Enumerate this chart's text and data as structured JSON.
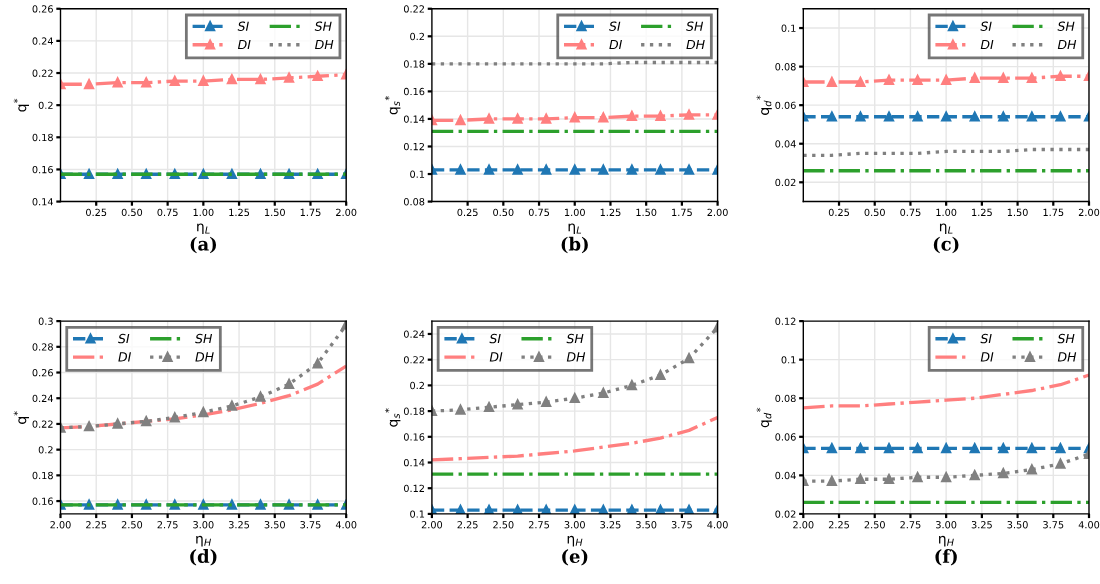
{
  "chart_data": [
    {
      "type": "line",
      "title": "(a)",
      "xlabel": "η$_{L}$",
      "ylabel": "q$^{*}$",
      "x": [
        0,
        0.2,
        0.4,
        0.6,
        0.8,
        1.0,
        1.2,
        1.4,
        1.6,
        1.8,
        2.0
      ],
      "xlim": [
        0,
        2
      ],
      "xticks": [
        {
          "value": 0.25,
          "label": "0.25"
        },
        {
          "value": 0.5,
          "label": "0.50"
        },
        {
          "value": 0.75,
          "label": "0.75"
        },
        {
          "value": 1.0,
          "label": "1.00"
        },
        {
          "value": 1.25,
          "label": "1.25"
        },
        {
          "value": 1.5,
          "label": "1.50"
        },
        {
          "value": 1.75,
          "label": "1.75"
        },
        {
          "value": 2.0,
          "label": "2.00"
        }
      ],
      "ylim": [
        0.14,
        0.26
      ],
      "yticks": [
        0.14,
        0.16,
        0.18,
        0.2,
        0.22,
        0.24,
        0.26
      ],
      "grid": true,
      "legend": "top right",
      "series": [
        {
          "name": "SI",
          "color": "#1f77b4",
          "line_style": "dashed",
          "marker": "triangle",
          "values": [
            0.157,
            0.157,
            0.157,
            0.157,
            0.157,
            0.157,
            0.157,
            0.157,
            0.157,
            0.157,
            0.157
          ]
        },
        {
          "name": "DI",
          "color": "#ff7f7f",
          "line_style": "dashdot",
          "marker": "triangle",
          "values": [
            0.213,
            0.213,
            0.214,
            0.214,
            0.215,
            0.215,
            0.216,
            0.216,
            0.217,
            0.218,
            0.219
          ]
        },
        {
          "name": "SH",
          "color": "#2ca02c",
          "line_style": "dashdot",
          "marker": "none",
          "values": [
            0.157,
            0.157,
            0.157,
            0.157,
            0.157,
            0.157,
            0.157,
            0.157,
            0.157,
            0.157,
            0.157
          ]
        },
        {
          "name": "DH",
          "color": "#808080",
          "line_style": "dotted",
          "marker": "none",
          "values": [
            null,
            null,
            null,
            null,
            null,
            null,
            null,
            null,
            null,
            null,
            null
          ]
        }
      ]
    },
    {
      "type": "line",
      "title": "(b)",
      "xlabel": "η$_{L}$",
      "ylabel": "q$_{s}$$^{*}$",
      "x": [
        0,
        0.2,
        0.4,
        0.6,
        0.8,
        1.0,
        1.2,
        1.4,
        1.6,
        1.8,
        2.0
      ],
      "xlim": [
        0,
        2
      ],
      "xticks": [
        {
          "value": 0.25,
          "label": "0.25"
        },
        {
          "value": 0.5,
          "label": "0.50"
        },
        {
          "value": 0.75,
          "label": "0.75"
        },
        {
          "value": 1.0,
          "label": "1.00"
        },
        {
          "value": 1.25,
          "label": "1.25"
        },
        {
          "value": 1.5,
          "label": "1.50"
        },
        {
          "value": 1.75,
          "label": "1.75"
        },
        {
          "value": 2.0,
          "label": "2.00"
        }
      ],
      "ylim": [
        0.08,
        0.22
      ],
      "yticks": [
        0.08,
        0.1,
        0.12,
        0.14,
        0.16,
        0.18,
        0.2,
        0.22
      ],
      "grid": true,
      "legend": "top right",
      "series": [
        {
          "name": "SI",
          "color": "#1f77b4",
          "line_style": "dashed",
          "marker": "triangle",
          "values": [
            0.103,
            0.103,
            0.103,
            0.103,
            0.103,
            0.103,
            0.103,
            0.103,
            0.103,
            0.103,
            0.103
          ]
        },
        {
          "name": "DI",
          "color": "#ff7f7f",
          "line_style": "dashdot",
          "marker": "triangle",
          "values": [
            0.139,
            0.139,
            0.14,
            0.14,
            0.14,
            0.141,
            0.141,
            0.142,
            0.142,
            0.143,
            0.143
          ]
        },
        {
          "name": "SH",
          "color": "#2ca02c",
          "line_style": "dashdot",
          "marker": "none",
          "values": [
            0.131,
            0.131,
            0.131,
            0.131,
            0.131,
            0.131,
            0.131,
            0.131,
            0.131,
            0.131,
            0.131
          ]
        },
        {
          "name": "DH",
          "color": "#808080",
          "line_style": "dotted",
          "marker": "none",
          "values": [
            0.18,
            0.18,
            0.18,
            0.18,
            0.18,
            0.18,
            0.18,
            0.181,
            0.181,
            0.181,
            0.181
          ]
        }
      ]
    },
    {
      "type": "line",
      "title": "(c)",
      "xlabel": "η$_{L}$",
      "ylabel": "q$_{d}$$^{*}$",
      "x": [
        0,
        0.2,
        0.4,
        0.6,
        0.8,
        1.0,
        1.2,
        1.4,
        1.6,
        1.8,
        2.0
      ],
      "xlim": [
        0,
        2
      ],
      "xticks": [
        {
          "value": 0.25,
          "label": "0.25"
        },
        {
          "value": 0.5,
          "label": "0.50"
        },
        {
          "value": 0.75,
          "label": "0.75"
        },
        {
          "value": 1.0,
          "label": "1.00"
        },
        {
          "value": 1.25,
          "label": "1.25"
        },
        {
          "value": 1.5,
          "label": "1.50"
        },
        {
          "value": 1.75,
          "label": "1.75"
        },
        {
          "value": 2.0,
          "label": "2.00"
        }
      ],
      "ylim": [
        0.01,
        0.11
      ],
      "yticks": [
        0.02,
        0.04,
        0.06,
        0.08,
        0.1
      ],
      "grid": true,
      "legend": "top right",
      "series": [
        {
          "name": "SI",
          "color": "#1f77b4",
          "line_style": "dashed",
          "marker": "triangle",
          "values": [
            0.054,
            0.054,
            0.054,
            0.054,
            0.054,
            0.054,
            0.054,
            0.054,
            0.054,
            0.054,
            0.054
          ]
        },
        {
          "name": "DI",
          "color": "#ff7f7f",
          "line_style": "dashdot",
          "marker": "triangle",
          "values": [
            0.072,
            0.072,
            0.072,
            0.073,
            0.073,
            0.073,
            0.074,
            0.074,
            0.074,
            0.075,
            0.075
          ]
        },
        {
          "name": "SH",
          "color": "#2ca02c",
          "line_style": "dashdot",
          "marker": "none",
          "values": [
            0.026,
            0.026,
            0.026,
            0.026,
            0.026,
            0.026,
            0.026,
            0.026,
            0.026,
            0.026,
            0.026
          ]
        },
        {
          "name": "DH",
          "color": "#808080",
          "line_style": "dotted",
          "marker": "none",
          "values": [
            0.034,
            0.034,
            0.035,
            0.035,
            0.035,
            0.036,
            0.036,
            0.036,
            0.037,
            0.037,
            0.037
          ]
        }
      ]
    },
    {
      "type": "line",
      "title": "(d)",
      "xlabel": "η$_{H}$",
      "ylabel": "q$^{*}$",
      "x": [
        2.0,
        2.2,
        2.4,
        2.6,
        2.8,
        3.0,
        3.2,
        3.4,
        3.6,
        3.8,
        4.0
      ],
      "xlim": [
        2,
        4
      ],
      "xticks": [
        {
          "value": 2.0,
          "label": "2.00"
        },
        {
          "value": 2.25,
          "label": "2.25"
        },
        {
          "value": 2.5,
          "label": "2.50"
        },
        {
          "value": 2.75,
          "label": "2.75"
        },
        {
          "value": 3.0,
          "label": "3.00"
        },
        {
          "value": 3.25,
          "label": "3.25"
        },
        {
          "value": 3.5,
          "label": "3.50"
        },
        {
          "value": 3.75,
          "label": "3.75"
        },
        {
          "value": 4.0,
          "label": "4.00"
        }
      ],
      "ylim": [
        0.15,
        0.3
      ],
      "yticks": [
        0.16,
        0.18,
        0.2,
        0.22,
        0.24,
        0.26,
        0.28,
        0.3
      ],
      "grid": true,
      "legend": "top left",
      "series": [
        {
          "name": "SI",
          "color": "#1f77b4",
          "line_style": "dashed",
          "marker": "triangle",
          "values": [
            0.157,
            0.157,
            0.157,
            0.157,
            0.157,
            0.157,
            0.157,
            0.157,
            0.157,
            0.157,
            0.157
          ]
        },
        {
          "name": "DI",
          "color": "#ff7f7f",
          "line_style": "dashdot",
          "marker": "none",
          "values": [
            0.217,
            0.218,
            0.22,
            0.222,
            0.224,
            0.227,
            0.231,
            0.236,
            0.242,
            0.251,
            0.265
          ]
        },
        {
          "name": "SH",
          "color": "#2ca02c",
          "line_style": "dashdot",
          "marker": "none",
          "values": [
            0.157,
            0.157,
            0.157,
            0.157,
            0.157,
            0.157,
            0.157,
            0.157,
            0.157,
            0.157,
            0.157
          ]
        },
        {
          "name": "DH",
          "color": "#808080",
          "line_style": "dotted",
          "marker": "triangle",
          "values": [
            0.217,
            0.218,
            0.22,
            0.222,
            0.225,
            0.229,
            0.234,
            0.241,
            0.251,
            0.267,
            0.297
          ]
        }
      ]
    },
    {
      "type": "line",
      "title": "(e)",
      "xlabel": "η$_{H}$",
      "ylabel": "q$_{s}$$^{*}$",
      "x": [
        2.0,
        2.2,
        2.4,
        2.6,
        2.8,
        3.0,
        3.2,
        3.4,
        3.6,
        3.8,
        4.0
      ],
      "xlim": [
        2,
        4
      ],
      "xticks": [
        {
          "value": 2.0,
          "label": "2.00"
        },
        {
          "value": 2.25,
          "label": "2.25"
        },
        {
          "value": 2.5,
          "label": "2.50"
        },
        {
          "value": 2.75,
          "label": "2.75"
        },
        {
          "value": 3.0,
          "label": "3.00"
        },
        {
          "value": 3.25,
          "label": "3.25"
        },
        {
          "value": 3.5,
          "label": "3.50"
        },
        {
          "value": 3.75,
          "label": "3.75"
        },
        {
          "value": 4.0,
          "label": "4.00"
        }
      ],
      "ylim": [
        0.1,
        0.25
      ],
      "yticks": [
        0.1,
        0.12,
        0.14,
        0.16,
        0.18,
        0.2,
        0.22,
        0.24
      ],
      "grid": true,
      "legend": "top left",
      "series": [
        {
          "name": "SI",
          "color": "#1f77b4",
          "line_style": "dashed",
          "marker": "triangle",
          "values": [
            0.103,
            0.103,
            0.103,
            0.103,
            0.103,
            0.103,
            0.103,
            0.103,
            0.103,
            0.103,
            0.103
          ]
        },
        {
          "name": "DI",
          "color": "#ff7f7f",
          "line_style": "dashdot",
          "marker": "none",
          "values": [
            0.142,
            0.143,
            0.144,
            0.145,
            0.147,
            0.149,
            0.152,
            0.155,
            0.159,
            0.165,
            0.175
          ]
        },
        {
          "name": "SH",
          "color": "#2ca02c",
          "line_style": "dashdot",
          "marker": "none",
          "values": [
            0.131,
            0.131,
            0.131,
            0.131,
            0.131,
            0.131,
            0.131,
            0.131,
            0.131,
            0.131,
            0.131
          ]
        },
        {
          "name": "DH",
          "color": "#808080",
          "line_style": "dotted",
          "marker": "triangle",
          "values": [
            0.18,
            0.181,
            0.183,
            0.185,
            0.187,
            0.19,
            0.194,
            0.2,
            0.208,
            0.221,
            0.245
          ]
        }
      ]
    },
    {
      "type": "line",
      "title": "(f)",
      "xlabel": "η$_{H}$",
      "ylabel": "q$_{d}$$^{*}$",
      "x": [
        2.0,
        2.2,
        2.4,
        2.6,
        2.8,
        3.0,
        3.2,
        3.4,
        3.6,
        3.8,
        4.0
      ],
      "xlim": [
        2,
        4
      ],
      "xticks": [
        {
          "value": 2.0,
          "label": "2.00"
        },
        {
          "value": 2.25,
          "label": "2.25"
        },
        {
          "value": 2.5,
          "label": "2.50"
        },
        {
          "value": 2.75,
          "label": "2.75"
        },
        {
          "value": 3.0,
          "label": "3.00"
        },
        {
          "value": 3.25,
          "label": "3.25"
        },
        {
          "value": 3.5,
          "label": "3.50"
        },
        {
          "value": 3.75,
          "label": "3.75"
        },
        {
          "value": 4.0,
          "label": "4.00"
        }
      ],
      "ylim": [
        0.02,
        0.12
      ],
      "yticks": [
        0.02,
        0.04,
        0.06,
        0.08,
        0.1,
        0.12
      ],
      "grid": true,
      "legend": "top right",
      "series": [
        {
          "name": "SI",
          "color": "#1f77b4",
          "line_style": "dashed",
          "marker": "triangle",
          "values": [
            0.054,
            0.054,
            0.054,
            0.054,
            0.054,
            0.054,
            0.054,
            0.054,
            0.054,
            0.054,
            0.054
          ]
        },
        {
          "name": "DI",
          "color": "#ff7f7f",
          "line_style": "dashdot",
          "marker": "none",
          "values": [
            0.075,
            0.076,
            0.076,
            0.077,
            0.078,
            0.079,
            0.08,
            0.082,
            0.084,
            0.087,
            0.092
          ]
        },
        {
          "name": "SH",
          "color": "#2ca02c",
          "line_style": "dashdot",
          "marker": "none",
          "values": [
            0.026,
            0.026,
            0.026,
            0.026,
            0.026,
            0.026,
            0.026,
            0.026,
            0.026,
            0.026,
            0.026
          ]
        },
        {
          "name": "DH",
          "color": "#808080",
          "line_style": "dotted",
          "marker": "triangle",
          "values": [
            0.037,
            0.037,
            0.038,
            0.038,
            0.039,
            0.039,
            0.04,
            0.041,
            0.043,
            0.046,
            0.051
          ]
        }
      ]
    }
  ]
}
